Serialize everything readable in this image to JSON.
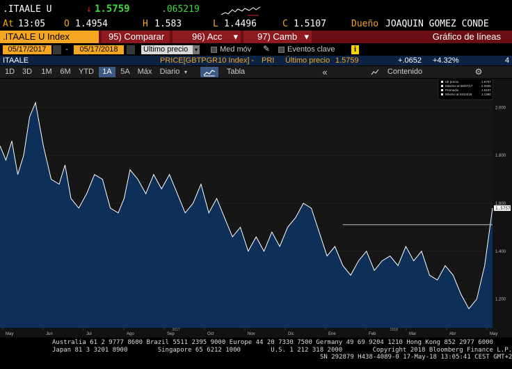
{
  "quote": {
    "ticker": ".ITAALE U",
    "arrow": "↓",
    "last": "1.5759",
    "change": ".065219",
    "at_label": "At",
    "time": "13:05",
    "open_label": "O",
    "open": "1.4954",
    "high_label": "H",
    "high": "1.583",
    "low_label": "L",
    "low": "1.4496",
    "close_label": "C",
    "close": "1.5107",
    "owner_label": "Dueño",
    "owner": "JOAQUIN GOMEZ CONDE"
  },
  "function_bar": {
    "security": ".ITAALE U Index",
    "compare_num": "95)",
    "compare": "Comparar",
    "acc_num": "96)",
    "acc": "Acc",
    "camb_num": "97)",
    "camb": "Camb",
    "view": "Gráfico de líneas"
  },
  "options": {
    "start_date": "05/17/2017",
    "dash": "-",
    "end_date": "05/17/2018",
    "price_field": "Último precio",
    "med_mov": "Med móv",
    "eventos": "Eventos clave",
    "info": "i"
  },
  "info_row": {
    "name": "ITAALE",
    "formula": "PRICE[GBTPGR10 Index] -",
    "pri": "PRI",
    "last_label": "Último precio",
    "last_value": "1.5759",
    "change": "+.0652",
    "pct": "+4.32%",
    "num": "4"
  },
  "periods": {
    "items": [
      "1D",
      "3D",
      "1M",
      "6M",
      "YTD",
      "1A",
      "5A",
      "Máx"
    ],
    "selected": "1A",
    "freq": "Diario",
    "table": "Tabla",
    "back": "«",
    "content": "Contenido",
    "gear": "⚙"
  },
  "legend": {
    "items": [
      {
        "label": "Últ precio",
        "value": "1.5757"
      },
      {
        "label": "Máximo al 06/07/17",
        "value": "2.0335"
      },
      {
        "label": "Promedio",
        "value": "1.5107"
      },
      {
        "label": "Mínimo al 04/24/18",
        "value": "1.1360"
      }
    ]
  },
  "chart_data": {
    "type": "line",
    "ylim": [
      1.08,
      2.12
    ],
    "yticks": [
      "2.000",
      "1.800",
      "1.600",
      "1.400",
      "1.200"
    ],
    "ytick_values": [
      2.0,
      1.8,
      1.6,
      1.4,
      1.2
    ],
    "xticks": [
      "May",
      "Jun",
      "Jul",
      "Ago",
      "Sep",
      "Oct",
      "Nov",
      "Dic",
      "Ene",
      "Feb",
      "Mar",
      "Abr",
      "May"
    ],
    "years": [
      "2017",
      "2018"
    ],
    "last_label": "1.5757",
    "avg": 1.5107,
    "colors": {
      "line": "#ffffff",
      "fill": "#0e2f57",
      "avg": "#cccccc",
      "bg": "#141414"
    },
    "x": [
      0,
      3,
      6,
      9,
      12,
      15,
      18,
      22,
      26,
      30,
      33,
      36,
      40,
      44,
      48,
      52,
      56,
      60,
      63,
      66,
      70,
      74,
      78,
      82,
      86,
      90,
      94,
      98,
      102,
      106,
      110,
      114,
      118,
      122,
      126,
      130,
      134,
      138,
      142,
      146,
      150,
      154,
      158,
      162,
      166,
      170,
      174,
      178,
      182,
      186,
      190,
      194,
      198,
      202,
      206,
      210,
      214,
      218,
      222,
      226,
      230,
      234,
      238,
      242,
      246,
      250
    ],
    "values": [
      1.84,
      1.78,
      1.86,
      1.72,
      1.8,
      1.96,
      2.02,
      1.84,
      1.7,
      1.68,
      1.76,
      1.62,
      1.58,
      1.64,
      1.72,
      1.7,
      1.58,
      1.56,
      1.62,
      1.74,
      1.7,
      1.64,
      1.72,
      1.66,
      1.72,
      1.64,
      1.56,
      1.6,
      1.68,
      1.56,
      1.62,
      1.54,
      1.46,
      1.5,
      1.4,
      1.46,
      1.4,
      1.48,
      1.42,
      1.5,
      1.54,
      1.6,
      1.58,
      1.48,
      1.38,
      1.42,
      1.34,
      1.3,
      1.36,
      1.4,
      1.32,
      1.36,
      1.38,
      1.34,
      1.42,
      1.36,
      1.4,
      1.3,
      1.28,
      1.34,
      1.3,
      1.22,
      1.16,
      1.2,
      1.34,
      1.58
    ]
  },
  "footer": {
    "line1": "Australia 61 2 9777 8600 Brazil 5511 2395 9000 Europe 44 20 7330 7500 Germany 49 69 9204 1210 Hong Kong 852 2977 6000",
    "line2": "Japan 81 3 3201 8900        Singapore 65 6212 1000        U.S. 1 212 318 2000        Copyright 2018 Bloomberg Finance L.P.",
    "line3": "SN 292879 H438-4089-0 17-May-18 13:05:41 CEST GMT+2:00"
  }
}
